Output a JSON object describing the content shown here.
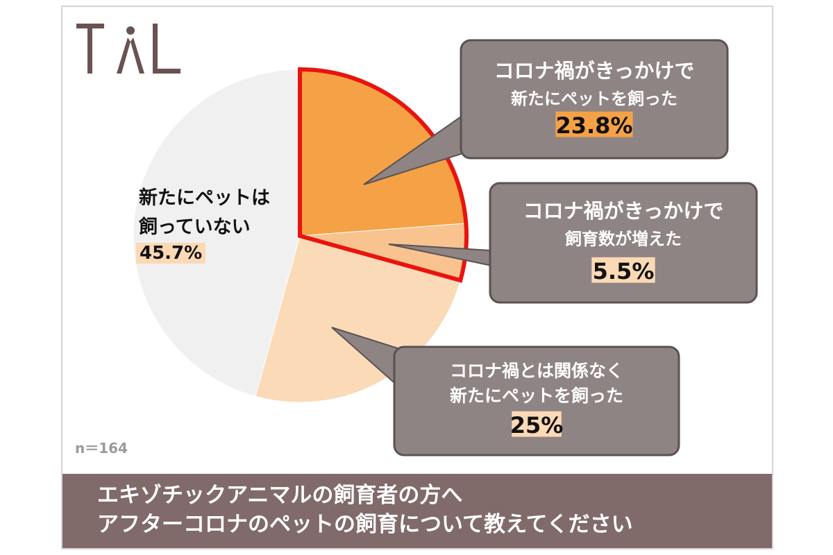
{
  "logo": {
    "text": "TAL"
  },
  "chart_data": {
    "type": "pie",
    "title": "エキゾチックアニマルの飼育者の方へ アフターコロナのペットの飼育について教えてください",
    "sample_size": "n＝164",
    "slices": [
      {
        "label_lines": [
          "コロナ禍がきっかけで",
          "新たにペットを飼った"
        ],
        "display": "23.8%",
        "value": 23.8,
        "color": "#f5a146",
        "highlight": true
      },
      {
        "label_lines": [
          "コロナ禍がきっかけで",
          "飼育数が増えた"
        ],
        "display": "5.5%",
        "value": 5.5,
        "color": "#f8c38f",
        "highlight": true
      },
      {
        "label_lines": [
          "コロナ禍とは関係なく",
          "新たにペットを飼った"
        ],
        "display": "25%",
        "value": 25,
        "color": "#fbdab8",
        "highlight": false
      },
      {
        "label_lines": [
          "新たにペットは",
          "飼っていない"
        ],
        "display": "45.7%",
        "value": 45.7,
        "color": "#f0f0f0",
        "highlight": false
      }
    ],
    "highlight_color": "#e8140e"
  },
  "footer": {
    "line1": "エキゾチックアニマルの飼育者の方へ",
    "line2": "アフターコロナのペットの飼育について教えてください"
  }
}
